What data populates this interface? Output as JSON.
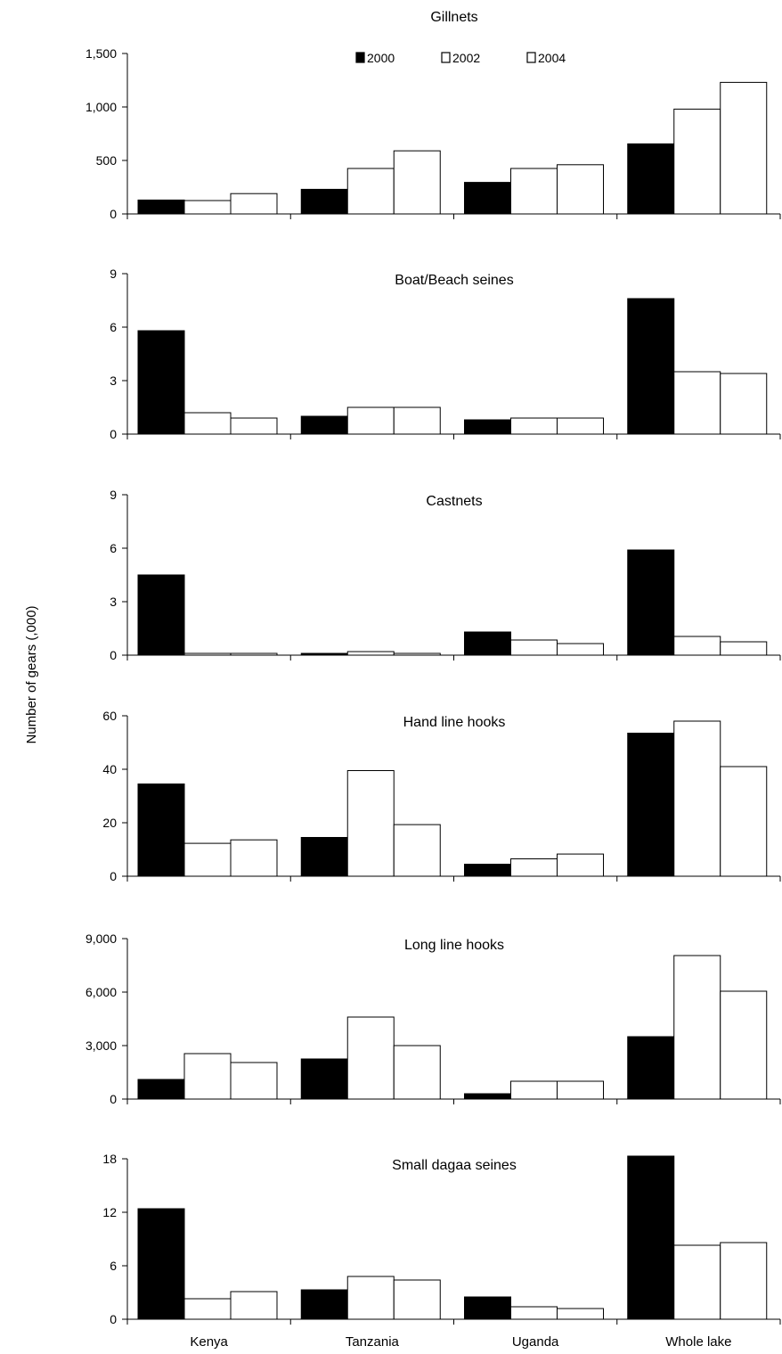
{
  "figure": {
    "ylabel": "Number of gears (,000)"
  },
  "legend": [
    "2000",
    "2002",
    "2004"
  ],
  "colors": {
    "2000": "#000000",
    "2002": "#ffffff",
    "2004": "#ffffff",
    "stroke": "#000000"
  },
  "chart_data": [
    {
      "type": "bar",
      "title": "Gillnets",
      "categories": [
        "Kenya",
        "Tanzania",
        "Uganda",
        "Whole lake"
      ],
      "series": [
        {
          "name": "2000",
          "values": [
            130,
            230,
            295,
            655
          ]
        },
        {
          "name": "2002",
          "values": [
            125,
            425,
            425,
            980
          ]
        },
        {
          "name": "2004",
          "values": [
            190,
            590,
            460,
            1230
          ]
        }
      ],
      "ylim": [
        0,
        1500
      ],
      "yticks": [
        0,
        500,
        1000,
        1500
      ],
      "ytick_labels": [
        "0",
        "500",
        "1,000",
        "1,500"
      ],
      "show_legend": true,
      "show_xticklabels": false,
      "grid": false
    },
    {
      "type": "bar",
      "title": "Boat/Beach seines",
      "categories": [
        "Kenya",
        "Tanzania",
        "Uganda",
        "Whole lake"
      ],
      "series": [
        {
          "name": "2000",
          "values": [
            5.8,
            1.0,
            0.8,
            7.6
          ]
        },
        {
          "name": "2002",
          "values": [
            1.2,
            1.5,
            0.9,
            3.5
          ]
        },
        {
          "name": "2004",
          "values": [
            0.9,
            1.5,
            0.9,
            3.4
          ]
        }
      ],
      "ylim": [
        0,
        9
      ],
      "yticks": [
        0,
        3,
        6,
        9
      ],
      "ytick_labels": [
        "0",
        "3",
        "6",
        "9"
      ],
      "show_legend": false,
      "show_xticklabels": false,
      "grid": false
    },
    {
      "type": "bar",
      "title": "Castnets",
      "categories": [
        "Kenya",
        "Tanzania",
        "Uganda",
        "Whole lake"
      ],
      "series": [
        {
          "name": "2000",
          "values": [
            4.5,
            0.1,
            1.3,
            5.9
          ]
        },
        {
          "name": "2002",
          "values": [
            0.1,
            0.2,
            0.85,
            1.05
          ]
        },
        {
          "name": "2004",
          "values": [
            0.1,
            0.1,
            0.65,
            0.75
          ]
        }
      ],
      "ylim": [
        0,
        9
      ],
      "yticks": [
        0,
        3,
        6,
        9
      ],
      "ytick_labels": [
        "0",
        "3",
        "6",
        "9"
      ],
      "show_legend": false,
      "show_xticklabels": false,
      "grid": false
    },
    {
      "type": "bar",
      "title": "Hand line hooks",
      "categories": [
        "Kenya",
        "Tanzania",
        "Uganda",
        "Whole lake"
      ],
      "series": [
        {
          "name": "2000",
          "values": [
            34.5,
            14.5,
            4.5,
            53.5
          ]
        },
        {
          "name": "2002",
          "values": [
            12.3,
            39.5,
            6.5,
            58
          ]
        },
        {
          "name": "2004",
          "values": [
            13.6,
            19.3,
            8.3,
            41
          ]
        }
      ],
      "ylim": [
        0,
        60
      ],
      "yticks": [
        0,
        20,
        40,
        60
      ],
      "ytick_labels": [
        "0",
        "20",
        "40",
        "60"
      ],
      "show_legend": false,
      "show_xticklabels": false,
      "grid": false
    },
    {
      "type": "bar",
      "title": "Long line hooks",
      "categories": [
        "Kenya",
        "Tanzania",
        "Uganda",
        "Whole lake"
      ],
      "series": [
        {
          "name": "2000",
          "values": [
            1100,
            2250,
            300,
            3500
          ]
        },
        {
          "name": "2002",
          "values": [
            2550,
            4600,
            1000,
            8050
          ]
        },
        {
          "name": "2004",
          "values": [
            2050,
            3000,
            1000,
            6050
          ]
        }
      ],
      "ylim": [
        0,
        9000
      ],
      "yticks": [
        0,
        3000,
        6000,
        9000
      ],
      "ytick_labels": [
        "0",
        "3,000",
        "6,000",
        "9,000"
      ],
      "show_legend": false,
      "show_xticklabels": false,
      "grid": false
    },
    {
      "type": "bar",
      "title": "Small dagaa seines",
      "categories": [
        "Kenya",
        "Tanzania",
        "Uganda",
        "Whole lake"
      ],
      "series": [
        {
          "name": "2000",
          "values": [
            12.4,
            3.3,
            2.5,
            18.3
          ]
        },
        {
          "name": "2002",
          "values": [
            2.3,
            4.8,
            1.4,
            8.3
          ]
        },
        {
          "name": "2004",
          "values": [
            3.1,
            4.4,
            1.2,
            8.6
          ]
        }
      ],
      "ylim": [
        0,
        18
      ],
      "yticks": [
        0,
        6,
        12,
        18
      ],
      "ytick_labels": [
        "0",
        "6",
        "12",
        "18"
      ],
      "show_legend": false,
      "show_xticklabels": true,
      "grid": false
    }
  ]
}
